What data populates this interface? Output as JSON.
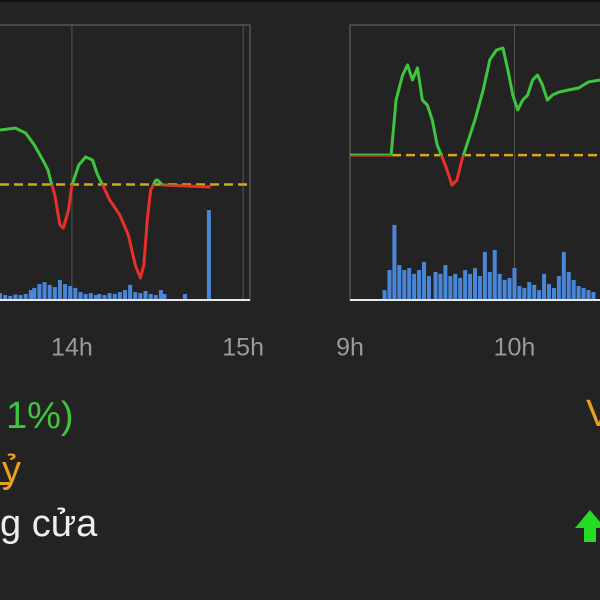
{
  "chart_data": [
    {
      "type": "line",
      "x": [
        13.58,
        13.67,
        13.73,
        13.78,
        13.83,
        13.86,
        13.88,
        13.9,
        13.93,
        13.95,
        13.98,
        14.0,
        14.04,
        14.08,
        14.12,
        14.15,
        14.18,
        14.22,
        14.28,
        14.33,
        14.37,
        14.4,
        14.42,
        14.44,
        14.46,
        14.49,
        14.5,
        14.53,
        14.81
      ],
      "values": [
        61.8,
        62.5,
        60.7,
        56.4,
        50.9,
        47.3,
        42.5,
        38.2,
        27.3,
        26.2,
        32.7,
        41.8,
        49.1,
        52.0,
        50.9,
        45.5,
        41.8,
        36.4,
        30.9,
        23.6,
        12.7,
        8.0,
        12.7,
        29.1,
        40.0,
        43.6,
        43.6,
        41.8,
        41.1
      ],
      "reference": 42.0,
      "volume": {
        "x": [
          13.58,
          13.61,
          13.64,
          13.67,
          13.7,
          13.73,
          13.76,
          13.78,
          13.81,
          13.84,
          13.87,
          13.9,
          13.93,
          13.96,
          13.99,
          14.02,
          14.05,
          14.08,
          14.11,
          14.14,
          14.16,
          14.19,
          14.22,
          14.25,
          14.28,
          14.31,
          14.34,
          14.37,
          14.4,
          14.43,
          14.46,
          14.49,
          14.52,
          14.54,
          14.66,
          14.8
        ],
        "values": [
          2.5,
          1.8,
          1.5,
          2,
          1.8,
          2.2,
          3.6,
          4.4,
          5.8,
          6.5,
          5.5,
          4.7,
          7.3,
          5.8,
          5.1,
          4.4,
          2.9,
          2.2,
          2.5,
          1.8,
          2.2,
          1.8,
          2.5,
          2.2,
          2.9,
          3.6,
          5.5,
          2.9,
          2.5,
          3.3,
          2.2,
          1.8,
          3.6,
          2.2,
          2.2,
          32.7
        ]
      },
      "xlim": [
        13.58,
        15.04
      ],
      "xticks": [
        {
          "value": 14,
          "label": "14h"
        },
        {
          "value": 15,
          "label": "15h"
        }
      ],
      "ylim": [
        0,
        100
      ],
      "y2lim": [
        0,
        100
      ],
      "grid": true,
      "up_color": "#3ec43e",
      "down_color": "#e8302a",
      "reference_color": "#d8a520",
      "volume_color": "#4a86d8"
    },
    {
      "type": "line",
      "x": [
        9.0,
        9.25,
        9.28,
        9.32,
        9.35,
        9.38,
        9.41,
        9.44,
        9.47,
        9.5,
        9.53,
        9.56,
        9.59,
        9.62,
        9.65,
        9.68,
        9.72,
        9.76,
        9.81,
        9.85,
        9.89,
        9.93,
        9.96,
        9.99,
        10.02,
        10.05,
        10.08,
        10.11,
        10.14,
        10.17,
        10.2,
        10.23,
        10.27,
        10.33,
        10.39,
        10.45,
        10.52
      ],
      "values": [
        52.7,
        52.7,
        72.7,
        81.8,
        85.5,
        80.0,
        84.4,
        72.7,
        70.9,
        65.5,
        56.4,
        52.0,
        47.3,
        41.8,
        43.6,
        50.9,
        58.2,
        65.5,
        76.4,
        87.3,
        90.9,
        91.6,
        83.6,
        74.5,
        69.1,
        72.7,
        74.5,
        80.0,
        81.8,
        78.2,
        72.7,
        74.5,
        75.6,
        76.4,
        77.1,
        79.3,
        80.0
      ],
      "reference": 52.7,
      "volume": {
        "x": [
          9.21,
          9.24,
          9.27,
          9.3,
          9.33,
          9.36,
          9.39,
          9.42,
          9.45,
          9.48,
          9.52,
          9.55,
          9.58,
          9.61,
          9.64,
          9.67,
          9.7,
          9.73,
          9.76,
          9.79,
          9.82,
          9.85,
          9.88,
          9.91,
          9.94,
          9.97,
          10.0,
          10.03,
          10.06,
          10.09,
          10.12,
          10.15,
          10.18,
          10.21,
          10.24,
          10.27,
          10.3,
          10.33,
          10.36,
          10.39,
          10.42,
          10.45,
          10.48
        ],
        "values": [
          3.6,
          10.9,
          27.3,
          12.7,
          10.9,
          11.6,
          9.5,
          10.9,
          13.8,
          8.7,
          10.2,
          9.5,
          12.7,
          8.7,
          9.5,
          8.0,
          10.9,
          9.5,
          11.6,
          8.7,
          17.5,
          10.2,
          18.2,
          9.5,
          7.3,
          8.0,
          11.6,
          5.1,
          4.4,
          6.5,
          5.5,
          3.6,
          9.5,
          5.8,
          4.4,
          8.7,
          17.5,
          10.2,
          7.3,
          5.1,
          4.4,
          3.6,
          2.9
        ]
      },
      "xlim": [
        9,
        10.52
      ],
      "xticks": [
        {
          "value": 9,
          "label": "9h"
        },
        {
          "value": 10,
          "label": "10h"
        }
      ],
      "ylim": [
        0,
        100
      ],
      "y2lim": [
        0,
        100
      ],
      "grid": true,
      "up_color": "#3ec43e",
      "down_color": "#e8302a",
      "reference_color": "#d8a520",
      "volume_color": "#4a86d8"
    }
  ],
  "texts": {
    "change": "1%)",
    "value": "ỷ",
    "status": "g cửa",
    "right_label": "V"
  }
}
